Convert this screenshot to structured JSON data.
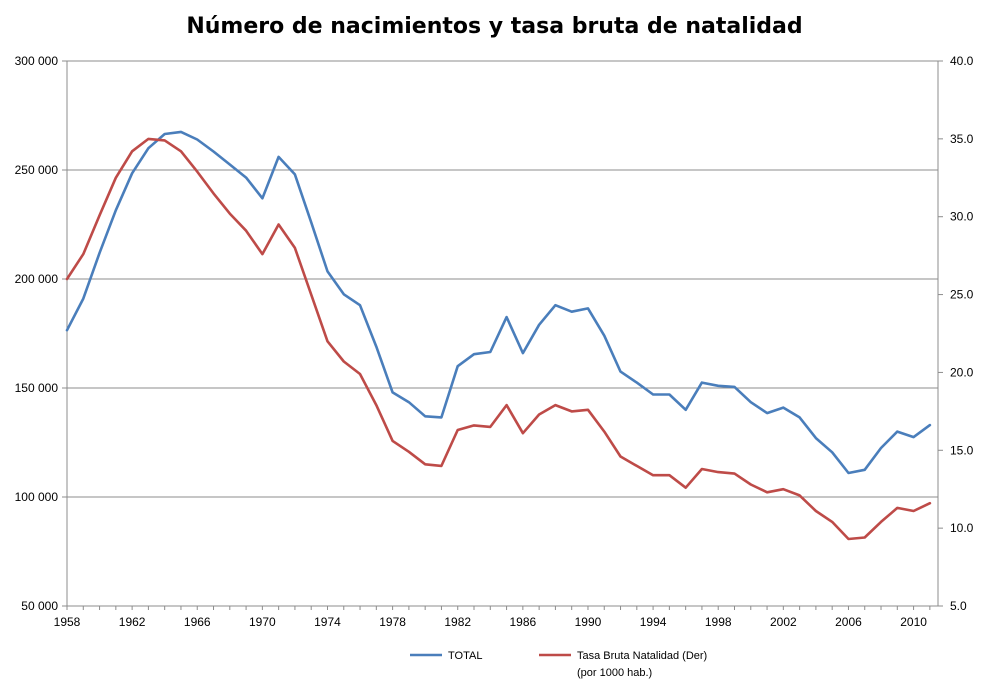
{
  "chart_data": {
    "type": "line",
    "title": "Número de nacimientos y tasa bruta de natalidad",
    "x": [
      1958,
      1959,
      1960,
      1961,
      1962,
      1963,
      1964,
      1965,
      1966,
      1967,
      1968,
      1969,
      1970,
      1971,
      1972,
      1973,
      1974,
      1975,
      1976,
      1977,
      1978,
      1979,
      1980,
      1981,
      1982,
      1983,
      1984,
      1985,
      1986,
      1987,
      1988,
      1989,
      1990,
      1991,
      1992,
      1993,
      1994,
      1995,
      1996,
      1997,
      1998,
      1999,
      2000,
      2001,
      2002,
      2003,
      2004,
      2005,
      2006,
      2007,
      2008,
      2009,
      2010,
      2011
    ],
    "x_ticks": [
      "1958",
      "1962",
      "1966",
      "1970",
      "1974",
      "1978",
      "1982",
      "1986",
      "1990",
      "1994",
      "1998",
      "2002",
      "2006",
      "2010"
    ],
    "y_left": {
      "ylim": [
        50000,
        300000
      ],
      "ticks": [
        "50 000",
        "100 000",
        "150 000",
        "200 000",
        "250 000",
        "300 000"
      ]
    },
    "y_right": {
      "ylim": [
        5.0,
        40.0
      ],
      "ticks": [
        "5.0",
        "10.0",
        "15.0",
        "20.0",
        "25.0",
        "30.0",
        "35.0",
        "40.0"
      ]
    },
    "grid": true,
    "legend_position": "bottom",
    "series": [
      {
        "name": "TOTAL",
        "axis": "left",
        "color": "#4A7EBB",
        "values": [
          176500,
          191000,
          212000,
          231500,
          248500,
          260000,
          266500,
          267500,
          264000,
          258500,
          252500,
          246500,
          237000,
          256000,
          248000,
          226000,
          203500,
          193000,
          188000,
          169000,
          148000,
          143500,
          137000,
          136500,
          160000,
          165500,
          166500,
          182500,
          166000,
          179000,
          188000,
          185000,
          186500,
          174000,
          157500,
          152500,
          147000,
          147000,
          140000,
          152500,
          151000,
          150500,
          143500,
          138500,
          141000,
          136500,
          127000,
          120500,
          111000,
          112500,
          122500,
          130000,
          127500,
          133000
        ]
      },
      {
        "name": "Tasa Bruta Natalidad (Der)\n(por 1000 hab.)",
        "axis": "right",
        "color": "#BE4B48",
        "values": [
          26.0,
          27.6,
          30.1,
          32.5,
          34.2,
          35.0,
          34.9,
          34.2,
          32.9,
          31.5,
          30.2,
          29.1,
          27.6,
          29.5,
          28.0,
          25.0,
          22.0,
          20.7,
          19.9,
          17.9,
          15.6,
          14.9,
          14.1,
          14.0,
          16.3,
          16.6,
          16.5,
          17.9,
          16.1,
          17.3,
          17.9,
          17.5,
          17.6,
          16.2,
          14.6,
          14.0,
          13.4,
          13.4,
          12.6,
          13.8,
          13.6,
          13.5,
          12.8,
          12.3,
          12.5,
          12.1,
          11.1,
          10.4,
          9.3,
          9.4,
          10.4,
          11.3,
          11.1,
          11.6
        ]
      }
    ]
  }
}
